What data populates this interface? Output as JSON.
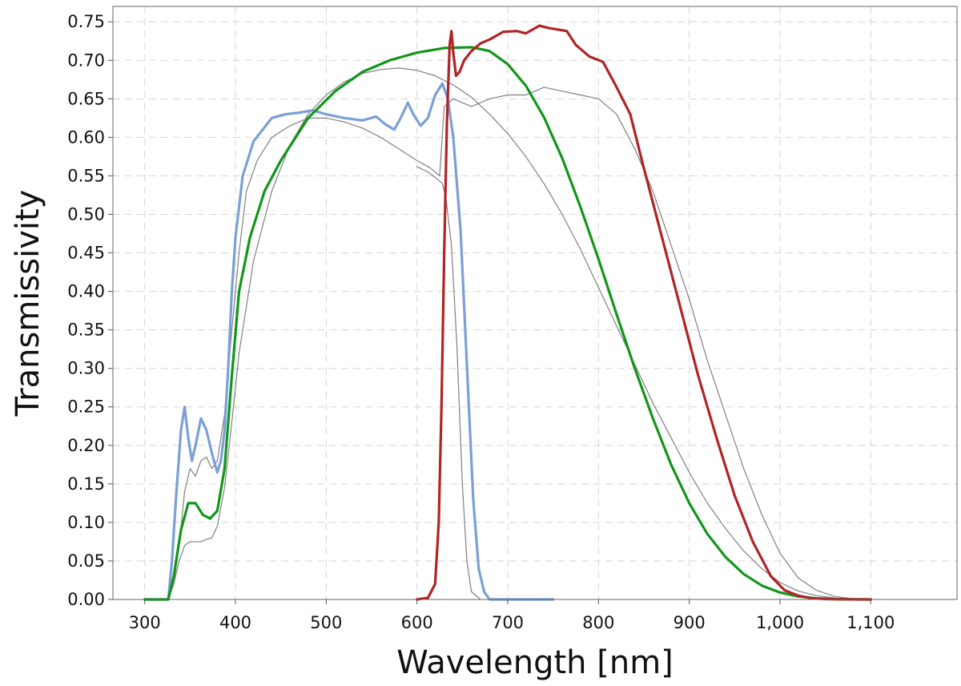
{
  "chart_data": {
    "type": "line",
    "title": "",
    "xlabel": "Wavelength [nm]",
    "ylabel": "Transmissivity",
    "xlim": [
      265,
      1195
    ],
    "ylim": [
      0,
      0.77
    ],
    "grid": true,
    "legend": "none",
    "x_ticks": [
      300,
      400,
      500,
      600,
      700,
      800,
      900,
      1000,
      1100
    ],
    "x_tick_labels": [
      "300",
      "400",
      "500",
      "600",
      "700",
      "800",
      "900",
      "1,000",
      "1,100"
    ],
    "y_ticks": [
      0,
      0.05,
      0.1,
      0.15,
      0.2,
      0.25,
      0.3,
      0.35,
      0.4,
      0.45,
      0.5,
      0.55,
      0.6,
      0.65,
      0.7,
      0.75
    ],
    "y_tick_labels": [
      "0.00",
      "0.05",
      "0.10",
      "0.15",
      "0.20",
      "0.25",
      "0.30",
      "0.35",
      "0.40",
      "0.45",
      "0.50",
      "0.55",
      "0.60",
      "0.65",
      "0.70",
      "0.75"
    ],
    "series": [
      {
        "name": "blue-filter",
        "color": "#7b9fd6",
        "width": 3.2,
        "x": [
          300,
          326,
          330,
          335,
          340,
          344,
          348,
          352,
          356,
          362,
          368,
          374,
          380,
          384,
          388,
          392,
          396,
          400,
          408,
          420,
          440,
          455,
          470,
          485,
          500,
          520,
          540,
          555,
          565,
          575,
          582,
          590,
          596,
          604,
          612,
          620,
          628,
          634,
          640,
          648,
          656,
          662,
          668,
          674,
          680,
          700,
          720,
          750
        ],
        "values": [
          0.0,
          0.0,
          0.05,
          0.14,
          0.22,
          0.25,
          0.21,
          0.18,
          0.2,
          0.235,
          0.22,
          0.19,
          0.165,
          0.18,
          0.22,
          0.3,
          0.4,
          0.47,
          0.55,
          0.595,
          0.625,
          0.63,
          0.632,
          0.635,
          0.63,
          0.625,
          0.622,
          0.627,
          0.617,
          0.61,
          0.625,
          0.645,
          0.63,
          0.615,
          0.625,
          0.655,
          0.67,
          0.65,
          0.6,
          0.48,
          0.28,
          0.13,
          0.04,
          0.01,
          0.0,
          0.0,
          0.0,
          0.0
        ]
      },
      {
        "name": "green-filter",
        "color": "#11961a",
        "width": 3.2,
        "x": [
          300,
          326,
          332,
          340,
          348,
          356,
          364,
          372,
          380,
          388,
          396,
          404,
          416,
          432,
          450,
          480,
          510,
          540,
          570,
          600,
          630,
          660,
          680,
          700,
          720,
          740,
          760,
          780,
          800,
          820,
          840,
          860,
          880,
          900,
          920,
          940,
          960,
          980,
          1000,
          1020,
          1040,
          1060,
          1080,
          1100
        ],
        "values": [
          0.0,
          0.0,
          0.03,
          0.09,
          0.125,
          0.125,
          0.11,
          0.105,
          0.115,
          0.17,
          0.29,
          0.4,
          0.47,
          0.53,
          0.57,
          0.625,
          0.66,
          0.685,
          0.7,
          0.71,
          0.716,
          0.717,
          0.712,
          0.695,
          0.667,
          0.626,
          0.573,
          0.51,
          0.442,
          0.37,
          0.3,
          0.235,
          0.175,
          0.125,
          0.085,
          0.055,
          0.033,
          0.018,
          0.009,
          0.004,
          0.0015,
          0.0005,
          0.0001,
          0.0
        ]
      },
      {
        "name": "red-filter",
        "color": "#b02426",
        "width": 3.2,
        "x": [
          600,
          612,
          620,
          624,
          627,
          630,
          633,
          636,
          638,
          640,
          643,
          647,
          652,
          660,
          670,
          680,
          695,
          710,
          720,
          735,
          745,
          755,
          765,
          775,
          790,
          805,
          820,
          835,
          850,
          870,
          890,
          910,
          930,
          950,
          970,
          990,
          1005,
          1020,
          1035,
          1050,
          1065,
          1080,
          1100
        ],
        "values": [
          0.0,
          0.002,
          0.02,
          0.1,
          0.25,
          0.45,
          0.62,
          0.72,
          0.738,
          0.71,
          0.68,
          0.685,
          0.7,
          0.712,
          0.722,
          0.727,
          0.737,
          0.738,
          0.735,
          0.745,
          0.742,
          0.74,
          0.738,
          0.72,
          0.705,
          0.698,
          0.665,
          0.63,
          0.56,
          0.47,
          0.38,
          0.29,
          0.21,
          0.135,
          0.075,
          0.03,
          0.012,
          0.005,
          0.0015,
          0.0005,
          0.0002,
          0.0001,
          0.0
        ]
      },
      {
        "name": "gray-curve-1",
        "color": "#808080",
        "width": 1.2,
        "x": [
          300,
          326,
          332,
          338,
          344,
          350,
          356,
          362,
          368,
          374,
          380,
          388,
          396,
          404,
          412,
          424,
          440,
          460,
          480,
          500,
          520,
          540,
          560,
          580,
          600,
          615,
          625,
          630,
          640,
          660,
          680,
          700,
          720,
          740,
          760,
          780,
          800,
          820,
          840,
          860,
          880,
          900,
          920,
          940,
          960,
          980,
          1000,
          1020,
          1040,
          1060,
          1080,
          1100
        ],
        "values": [
          0.0,
          0.0,
          0.02,
          0.07,
          0.14,
          0.17,
          0.16,
          0.18,
          0.185,
          0.17,
          0.18,
          0.24,
          0.35,
          0.45,
          0.53,
          0.57,
          0.6,
          0.615,
          0.625,
          0.625,
          0.62,
          0.612,
          0.6,
          0.585,
          0.57,
          0.56,
          0.55,
          0.64,
          0.65,
          0.64,
          0.65,
          0.655,
          0.655,
          0.665,
          0.66,
          0.655,
          0.65,
          0.63,
          0.585,
          0.53,
          0.46,
          0.39,
          0.31,
          0.24,
          0.17,
          0.11,
          0.06,
          0.028,
          0.012,
          0.004,
          0.001,
          0.0
        ]
      },
      {
        "name": "gray-curve-2",
        "color": "#808080",
        "width": 1.2,
        "x": [
          300,
          326,
          332,
          338,
          344,
          350,
          356,
          362,
          368,
          374,
          380,
          388,
          396,
          404,
          420,
          440,
          460,
          480,
          500,
          520,
          540,
          560,
          580,
          600,
          620,
          640,
          660,
          680,
          700,
          720,
          740,
          760,
          780,
          800,
          820,
          840,
          860,
          880,
          900,
          920,
          940,
          960,
          980,
          1000,
          1020,
          1040,
          1060,
          1080,
          1100
        ],
        "values": [
          0.0,
          0.0,
          0.02,
          0.05,
          0.07,
          0.075,
          0.075,
          0.075,
          0.078,
          0.08,
          0.095,
          0.145,
          0.23,
          0.32,
          0.44,
          0.53,
          0.59,
          0.63,
          0.655,
          0.672,
          0.683,
          0.688,
          0.69,
          0.687,
          0.68,
          0.668,
          0.652,
          0.63,
          0.605,
          0.575,
          0.54,
          0.5,
          0.455,
          0.405,
          0.355,
          0.305,
          0.255,
          0.21,
          0.165,
          0.125,
          0.092,
          0.063,
          0.04,
          0.022,
          0.011,
          0.005,
          0.002,
          0.0005,
          0.0
        ]
      },
      {
        "name": "gray-curve-3",
        "color": "#808080",
        "width": 1.2,
        "x": [
          600,
          612,
          620,
          628,
          632,
          638,
          644,
          650,
          655,
          660,
          670
        ],
        "values": [
          0.562,
          0.555,
          0.548,
          0.54,
          0.52,
          0.46,
          0.33,
          0.15,
          0.05,
          0.01,
          0.0
        ]
      }
    ]
  }
}
